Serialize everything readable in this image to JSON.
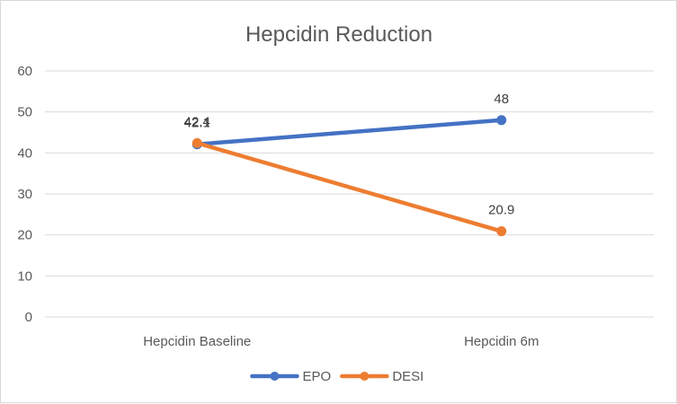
{
  "chart_data": {
    "type": "line",
    "title": "Hepcidin Reduction",
    "categories": [
      "Hepcidin Baseline",
      "Hepcidin 6m"
    ],
    "series": [
      {
        "name": "EPO",
        "values": [
          42.1,
          48
        ],
        "labels": [
          "42.1",
          "48"
        ],
        "color": "#4472C4"
      },
      {
        "name": "DESI",
        "values": [
          42.4,
          20.9
        ],
        "labels": [
          "42.4",
          "20.9"
        ],
        "color": "#ED7D31"
      }
    ],
    "ylim": [
      0,
      60
    ],
    "yticks": [
      0,
      10,
      20,
      30,
      40,
      50,
      60
    ],
    "grid": true,
    "legend": "bottom"
  }
}
